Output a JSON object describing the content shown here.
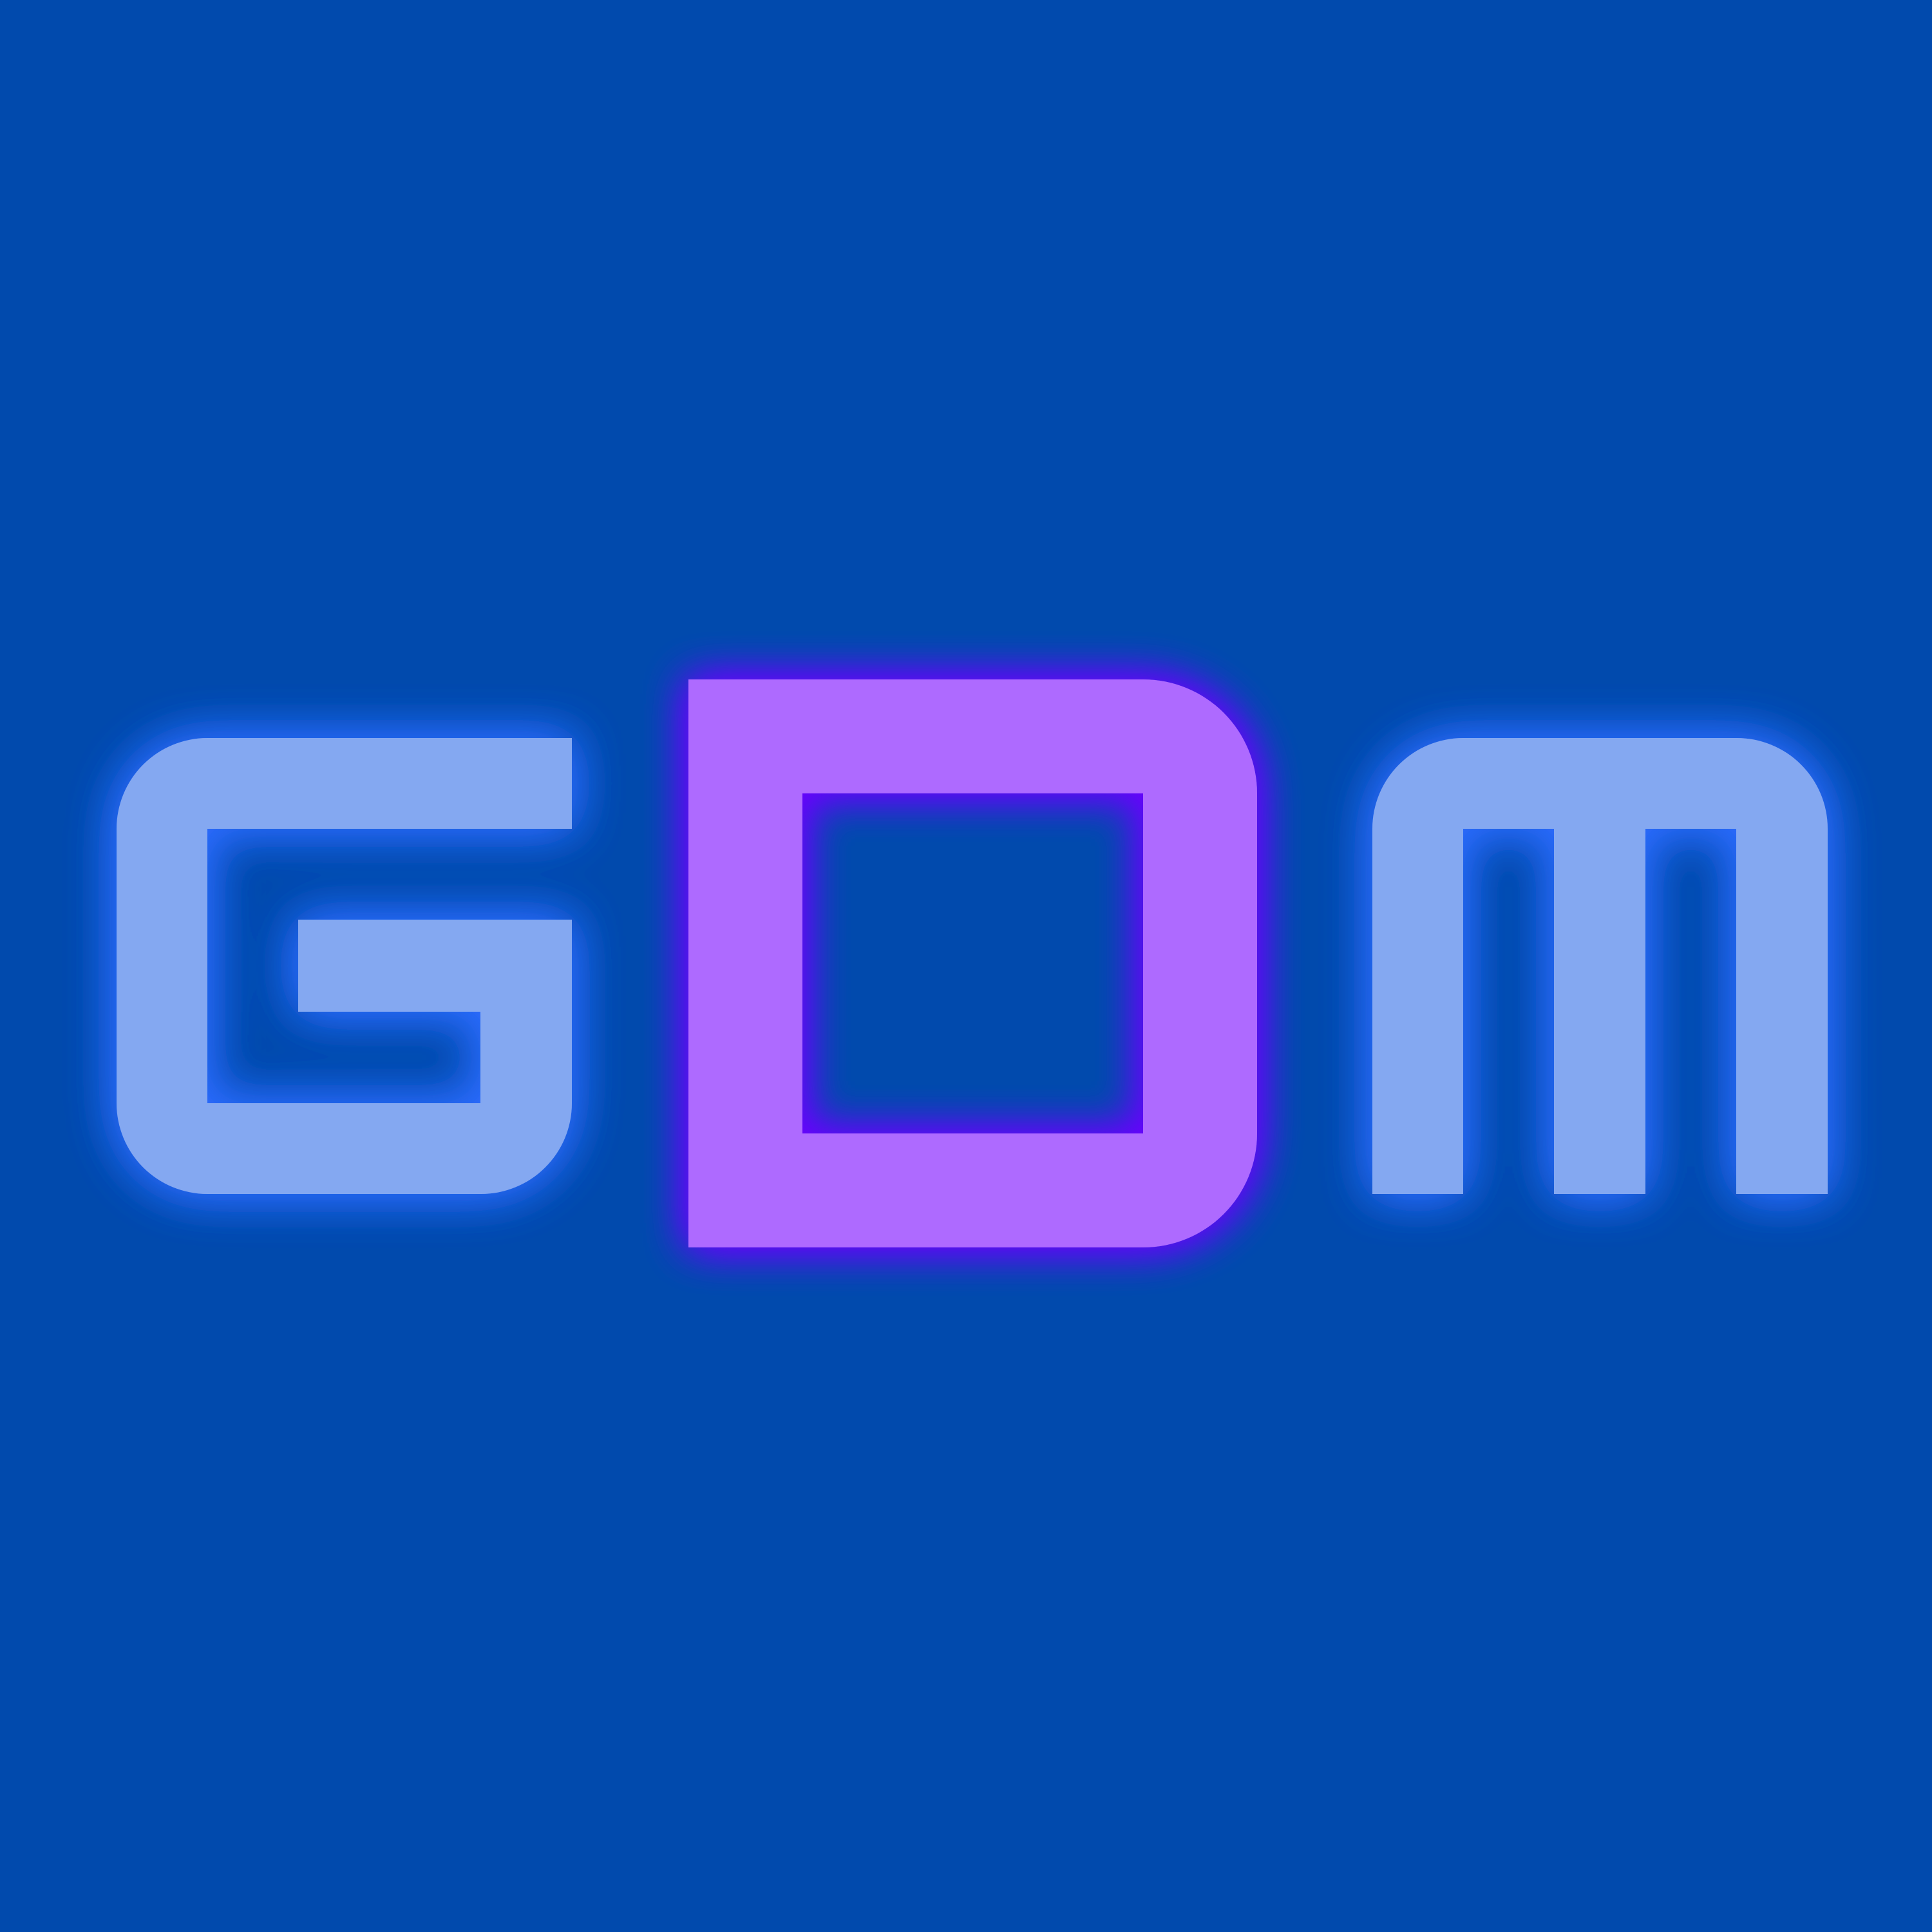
{
  "logo": {
    "text": "GDM",
    "letters": [
      "G",
      "D",
      "M"
    ]
  },
  "colors": {
    "background": "#014aad",
    "side_letters": "#84a8f1",
    "side_glow": "#2e6cff",
    "center_letter": "#ae6bff",
    "center_glow": "#6a00ff"
  }
}
